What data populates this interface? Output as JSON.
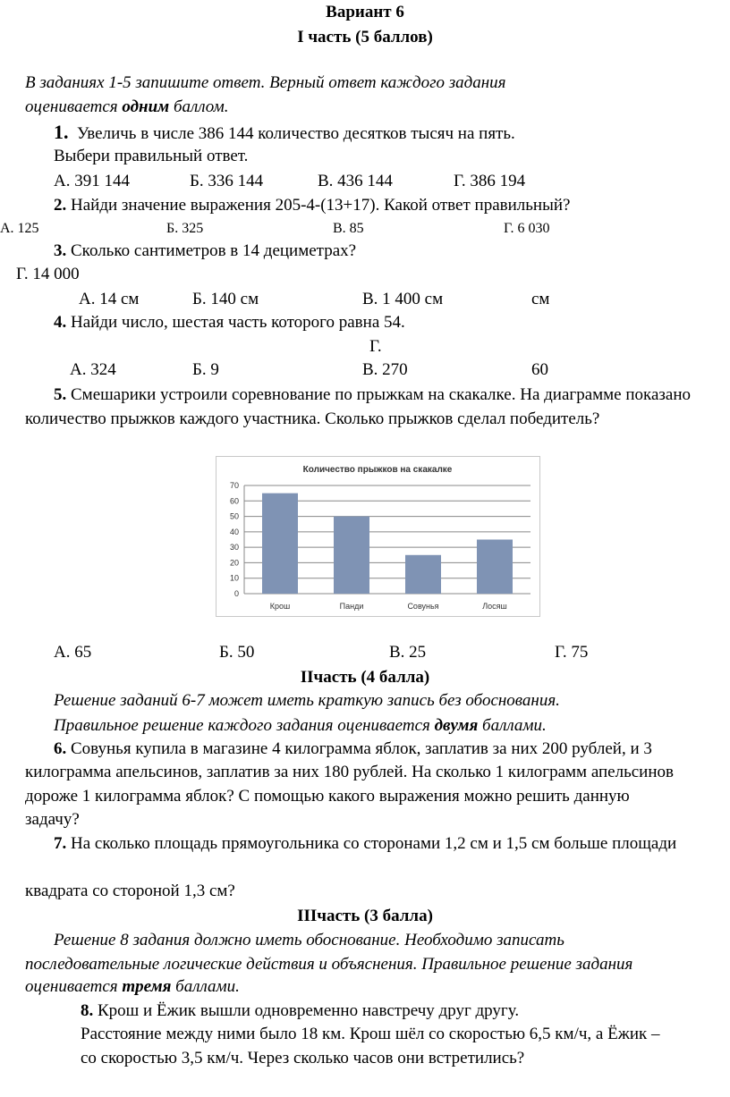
{
  "header": {
    "title": "Вариант 6",
    "part1": "I часть (5 баллов)"
  },
  "intro1": {
    "line1": "В заданиях 1-5 запишите ответ. Верный ответ каждого задания",
    "line2_a": "оценивается ",
    "line2_bold": "одним",
    "line2_b": " баллом."
  },
  "q1": {
    "num": "1.",
    "text": "Увеличь в числе 386 144 количество десятков тысяч на пять.",
    "text2": "Выбери правильный ответ.",
    "options": [
      "А. 391 144",
      "Б. 336 144",
      "В. 436 144",
      "Г. 386 194"
    ]
  },
  "q2": {
    "num": "2.",
    "text": " Найди значение выражения 205-4-(13+17). Какой ответ правильный?",
    "options": [
      "А. 125",
      "Б. 325",
      "В. 85",
      "Г. 6 030"
    ]
  },
  "q3": {
    "num": "3.",
    "text": " Сколько сантиметров в 14 дециметрах?",
    "stray": "Г. 14 000",
    "options": [
      "А. 14 см",
      "Б. 140 см",
      "В. 1 400 см",
      "см"
    ]
  },
  "q4": {
    "num": "4.",
    "text": " Найди число, шестая часть которого равна 54.",
    "stray": "Г.",
    "options": [
      "А. 324",
      "Б. 9",
      "В. 270",
      "60"
    ]
  },
  "q5": {
    "num": "5.",
    "text": " Смешарики устроили соревнование по прыжкам на скакалке. На диаграмме показано",
    "text2": "количество прыжков каждого участника. Сколько прыжков сделал победитель?",
    "options": [
      "А. 65",
      "Б. 50",
      "В. 25",
      "Г. 75"
    ]
  },
  "chart_data": {
    "type": "bar",
    "title": "Количество прыжков на скакалке",
    "categories": [
      "Крош",
      "Панди",
      "Совунья",
      "Лосяш"
    ],
    "values": [
      65,
      50,
      25,
      35
    ],
    "ylim": [
      0,
      70
    ],
    "yticks": [
      "0",
      "10",
      "20",
      "30",
      "40",
      "50",
      "60",
      "70"
    ],
    "grid": true,
    "color": "#7f93b4"
  },
  "part2": {
    "title": "IIчасть (4 балла)",
    "line1": "Решение заданий 6-7 может иметь краткую запись без обоснования.",
    "line2_a": "Правильное решение каждого задания оценивается ",
    "line2_bold": "двумя",
    "line2_b": " баллами."
  },
  "q6": {
    "num": "6.",
    "l1": " Совунья купила в магазине 4 килограмма яблок, заплатив за них 200 рублей, и 3",
    "l2": "килограмма апельсинов, заплатив за них 180 рублей. На сколько 1 килограмм апельсинов",
    "l3": "дороже 1 килограмма яблок? С помощью какого выражения можно решить данную",
    "l4": "задачу?"
  },
  "q7": {
    "num": "7.",
    "l1": " На сколько площадь прямоугольника со сторонами 1,2 см и 1,5 см больше площади",
    "l2": "квадрата со стороной 1,3 см?"
  },
  "part3": {
    "title": "IIIчасть (3 балла)",
    "line1": "Решение 8 задания должно иметь обоснование. Необходимо записать",
    "line2": "последовательные логические действия и объяснения. Правильное решение задания",
    "line3_a": "оценивается ",
    "line3_bold": "тремя",
    "line3_b": " баллами."
  },
  "q8": {
    "num": "8.",
    "l1": " Крош и Ёжик вышли одновременно навстречу друг другу.",
    "l2": "Расстояние между  ними было 18 км. Крош шёл со скоростью 6,5 км/ч, а Ёжик –",
    "l3": "со скоростью 3,5 км/ч. Через сколько часов они встретились?"
  }
}
